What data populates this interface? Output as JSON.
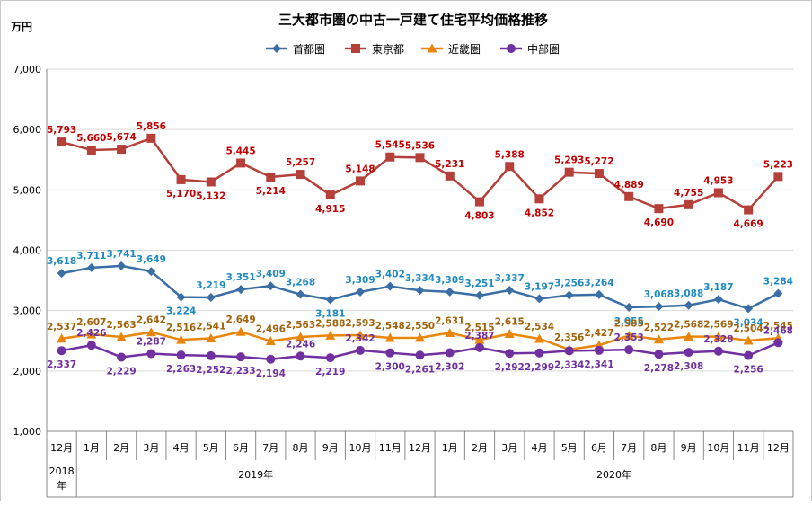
{
  "chart_data": {
    "type": "line",
    "title": "三大都市圏の中古一戸建て住宅平均価格推移",
    "ylabel": "万円",
    "ylim": [
      1000,
      7000
    ],
    "yticks": [
      "1,000",
      "2,000",
      "3,000",
      "4,000",
      "5,000",
      "6,000",
      "7,000"
    ],
    "ytick_values": [
      1000,
      2000,
      3000,
      4000,
      5000,
      6000,
      7000
    ],
    "grid": true,
    "legend": "top-center",
    "categories": [
      "12月",
      "1月",
      "2月",
      "3月",
      "4月",
      "5月",
      "6月",
      "7月",
      "8月",
      "9月",
      "10月",
      "11月",
      "12月",
      "1月",
      "2月",
      "3月",
      "4月",
      "5月",
      "6月",
      "7月",
      "8月",
      "9月",
      "10月",
      "11月",
      "12月"
    ],
    "year_groups": [
      {
        "label": "2018\n年",
        "start": 0,
        "end": 0
      },
      {
        "label": "2019年",
        "start": 1,
        "end": 12
      },
      {
        "label": "2020年",
        "start": 13,
        "end": 24
      }
    ],
    "series": [
      {
        "name": "首都圏",
        "color": "#3b6ea5",
        "label_color": "#1f8ac0",
        "marker": "diamond",
        "values": [
          3618,
          3711,
          3741,
          3649,
          3224,
          3219,
          3351,
          3409,
          3268,
          3181,
          3309,
          3402,
          3334,
          3309,
          3251,
          3337,
          3197,
          3256,
          3264,
          3055,
          3068,
          3088,
          3187,
          3034,
          3284
        ],
        "labels": [
          "3,618",
          "3,711",
          "3,741",
          "3,649",
          "3,224",
          "3,219",
          "3,351",
          "3,409",
          "3,268",
          "3,181",
          "3,309",
          "3,402",
          "3,334",
          "3,309",
          "3,251",
          "3,337",
          "3,197",
          "3,256",
          "3,264",
          "3,055",
          "3,068",
          "3,088",
          "3,187",
          "3,034",
          "3,284"
        ]
      },
      {
        "name": "東京都",
        "color": "#b5403a",
        "label_color": "#c00000",
        "marker": "square",
        "values": [
          5793,
          5660,
          5674,
          5856,
          5170,
          5132,
          5445,
          5214,
          5257,
          4915,
          5148,
          5545,
          5536,
          5231,
          4803,
          5388,
          4852,
          5293,
          5272,
          4889,
          4690,
          4755,
          4953,
          4669,
          5223
        ],
        "labels": [
          "5,793",
          "5,660",
          "5,674",
          "5,856",
          "5,170",
          "5,132",
          "5,445",
          "5,214",
          "5,257",
          "4,915",
          "5,148",
          "5,545",
          "5,536",
          "5,231",
          "4,803",
          "5,388",
          "4,852",
          "5,293",
          "5,272",
          "4,889",
          "4,690",
          "4,755",
          "4,953",
          "4,669",
          "5,223"
        ]
      },
      {
        "name": "近畿圏",
        "color": "#e8860c",
        "label_color": "#a0620a",
        "marker": "triangle",
        "values": [
          2537,
          2607,
          2563,
          2642,
          2516,
          2541,
          2649,
          2496,
          2563,
          2588,
          2593,
          2548,
          2550,
          2631,
          2515,
          2615,
          2534,
          2356,
          2427,
          2585,
          2522,
          2568,
          2569,
          2504,
          2545
        ],
        "labels": [
          "2,537",
          "2,607",
          "2,563",
          "2,642",
          "2,516",
          "2,541",
          "2,649",
          "2,496",
          "2,563",
          "2,588",
          "2,593",
          "2,548",
          "2,550",
          "2,631",
          "2,515",
          "2,615",
          "2,534",
          "2,356",
          "2,427",
          "2,585",
          "2,522",
          "2,568",
          "2,569",
          "2,504",
          "2,545"
        ]
      },
      {
        "name": "中部圏",
        "color": "#7030a0",
        "label_color": "#7030a0",
        "marker": "circle",
        "values": [
          2337,
          2426,
          2229,
          2287,
          2263,
          2252,
          2233,
          2194,
          2246,
          2219,
          2342,
          2300,
          2261,
          2302,
          2387,
          2292,
          2299,
          2334,
          2341,
          2353,
          2278,
          2308,
          2328,
          2256,
          2468
        ],
        "labels": [
          "2,337",
          "2,426",
          "2,229",
          "2,287",
          "2,263",
          "2,252",
          "2,233",
          "2,194",
          "2,246",
          "2,219",
          "2,342",
          "2,300",
          "2,261",
          "2,302",
          "2,387",
          "2,292",
          "2,299",
          "2,334",
          "2,341",
          "2,353",
          "2,278",
          "2,308",
          "2,328",
          "2,256",
          "2,468"
        ]
      }
    ]
  }
}
